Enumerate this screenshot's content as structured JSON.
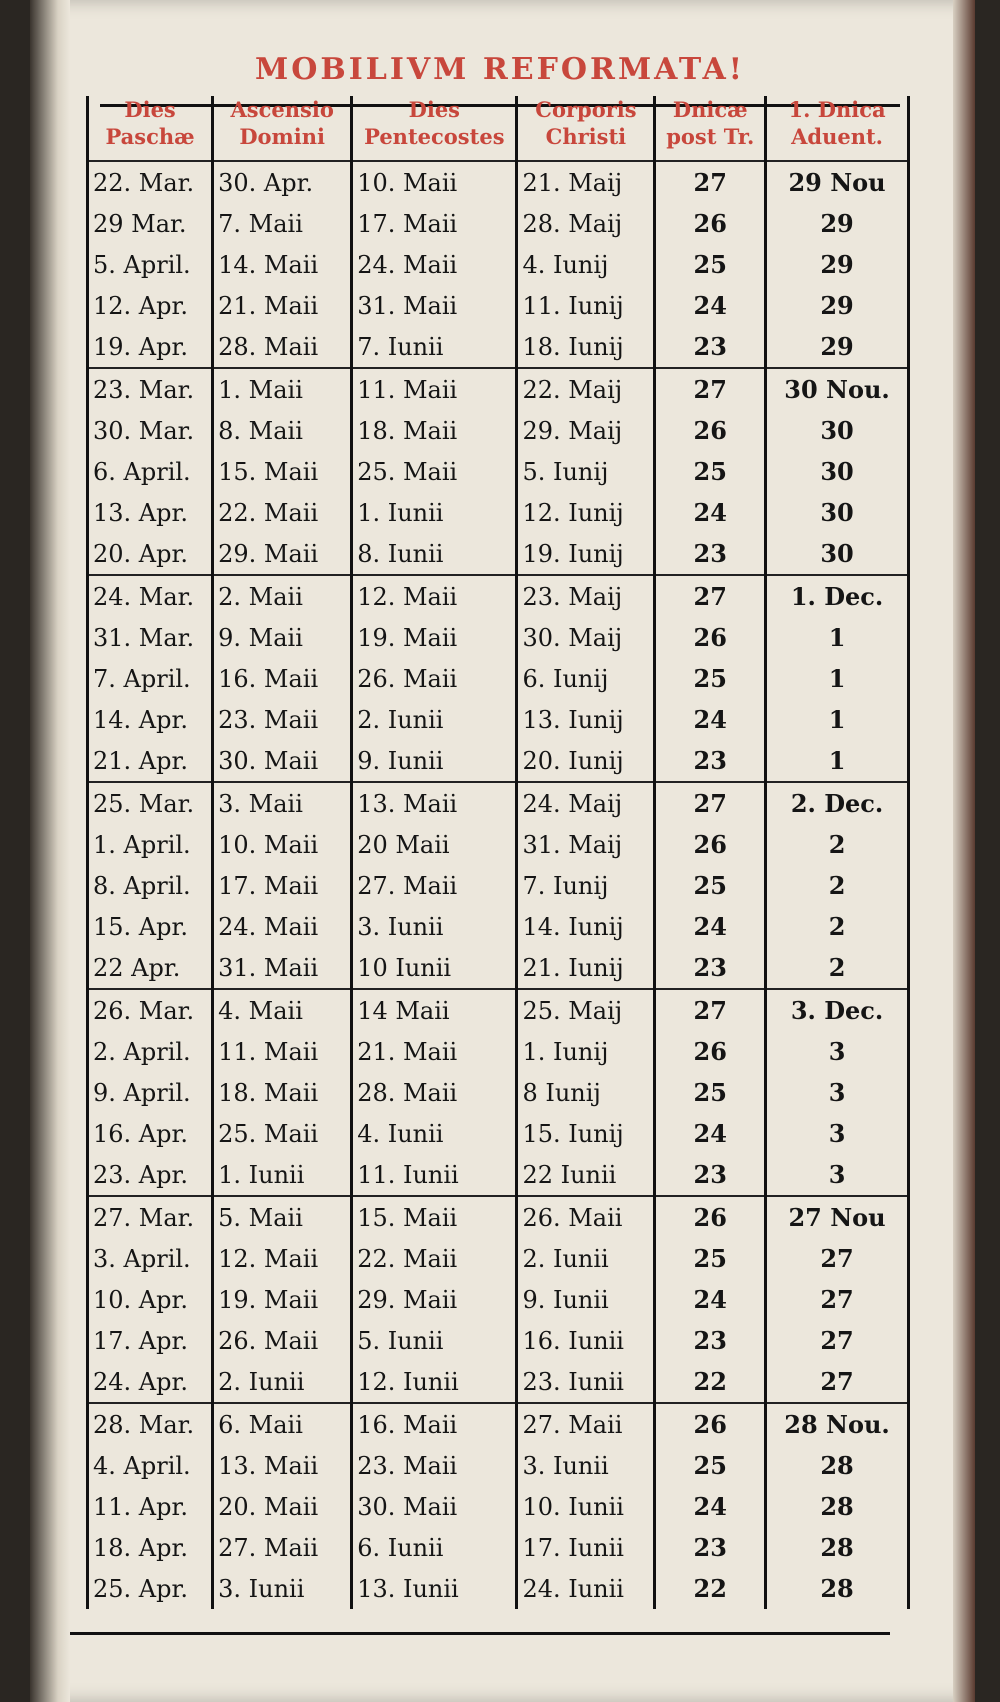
{
  "title": "MOBILIVM REFORMATA!",
  "columns": [
    "Dies Paschæ",
    "Ascensio Domini",
    "Dies Pentecostes",
    "Corporis Christi",
    "Dnicæ post Tr.",
    "1. Dnica Aduent."
  ],
  "rows": [
    [
      "22. Mar.",
      "30. Apr.",
      "10. Maii",
      "21. Maij",
      "27",
      "29 Nou"
    ],
    [
      "29 Mar.",
      "7. Maii",
      "17. Maii",
      "28. Maij",
      "26",
      "29"
    ],
    [
      "5. April.",
      "14. Maii",
      "24. Maii",
      "4. Iunij",
      "25",
      "29"
    ],
    [
      "12. Apr.",
      "21. Maii",
      "31. Maii",
      "11. Iunij",
      "24",
      "29"
    ],
    [
      "19. Apr.",
      "28. Maii",
      "7. Iunii",
      "18. Iunij",
      "23",
      "29"
    ],
    [
      "23. Mar.",
      "1. Maii",
      "11. Maii",
      "22. Maij",
      "27",
      "30 Nou."
    ],
    [
      "30. Mar.",
      "8. Maii",
      "18. Maii",
      "29. Maij",
      "26",
      "30"
    ],
    [
      "6. April.",
      "15. Maii",
      "25. Maii",
      "5. Iunij",
      "25",
      "30"
    ],
    [
      "13. Apr.",
      "22. Maii",
      "1. Iunii",
      "12. Iunij",
      "24",
      "30"
    ],
    [
      "20. Apr.",
      "29. Maii",
      "8. Iunii",
      "19. Iunij",
      "23",
      "30"
    ],
    [
      "24. Mar.",
      "2. Maii",
      "12. Maii",
      "23. Maij",
      "27",
      "1. Dec."
    ],
    [
      "31. Mar.",
      "9. Maii",
      "19. Maii",
      "30. Maij",
      "26",
      "1"
    ],
    [
      "7. April.",
      "16. Maii",
      "26. Maii",
      "6. Iunij",
      "25",
      "1"
    ],
    [
      "14. Apr.",
      "23. Maii",
      "2. Iunii",
      "13. Iunij",
      "24",
      "1"
    ],
    [
      "21. Apr.",
      "30. Maii",
      "9. Iunii",
      "20. Iunij",
      "23",
      "1"
    ],
    [
      "25. Mar.",
      "3. Maii",
      "13. Maii",
      "24. Maij",
      "27",
      "2. Dec."
    ],
    [
      "1. April.",
      "10. Maii",
      "20 Maii",
      "31. Maij",
      "26",
      "2"
    ],
    [
      "8. April.",
      "17. Maii",
      "27. Maii",
      "7. Iunij",
      "25",
      "2"
    ],
    [
      "15. Apr.",
      "24. Maii",
      "3. Iunii",
      "14. Iunij",
      "24",
      "2"
    ],
    [
      "22 Apr.",
      "31. Maii",
      "10 Iunii",
      "21. Iunij",
      "23",
      "2"
    ],
    [
      "26. Mar.",
      "4. Maii",
      "14 Maii",
      "25. Maij",
      "27",
      "3. Dec."
    ],
    [
      "2. April.",
      "11. Maii",
      "21. Maii",
      "1. Iunij",
      "26",
      "3"
    ],
    [
      "9. April.",
      "18. Maii",
      "28. Maii",
      "8 Iunij",
      "25",
      "3"
    ],
    [
      "16. Apr.",
      "25. Maii",
      "4. Iunii",
      "15. Iunij",
      "24",
      "3"
    ],
    [
      "23. Apr.",
      "1. Iunii",
      "11. Iunii",
      "22 Iunii",
      "23",
      "3"
    ],
    [
      "27. Mar.",
      "5. Maii",
      "15. Maii",
      "26. Maii",
      "26",
      "27 Nou"
    ],
    [
      "3. April.",
      "12. Maii",
      "22. Maii",
      "2. Iunii",
      "25",
      "27"
    ],
    [
      "10. Apr.",
      "19. Maii",
      "29. Maii",
      "9. Iunii",
      "24",
      "27"
    ],
    [
      "17. Apr.",
      "26. Maii",
      "5. Iunii",
      "16. Iunii",
      "23",
      "27"
    ],
    [
      "24. Apr.",
      "2. Iunii",
      "12. Iunii",
      "23. Iunii",
      "22",
      "27"
    ],
    [
      "28. Mar.",
      "6. Maii",
      "16. Maii",
      "27. Maii",
      "26",
      "28 Nou."
    ],
    [
      "4. April.",
      "13. Maii",
      "23. Maii",
      "3. Iunii",
      "25",
      "28"
    ],
    [
      "11. Apr.",
      "20. Maii",
      "30. Maii",
      "10. Iunii",
      "24",
      "28"
    ],
    [
      "18. Apr.",
      "27. Maii",
      "6. Iunii",
      "17. Iunii",
      "23",
      "28"
    ],
    [
      "25. Apr.",
      "3. Iunii",
      "13. Iunii",
      "24. Iunii",
      "22",
      "28"
    ]
  ]
}
